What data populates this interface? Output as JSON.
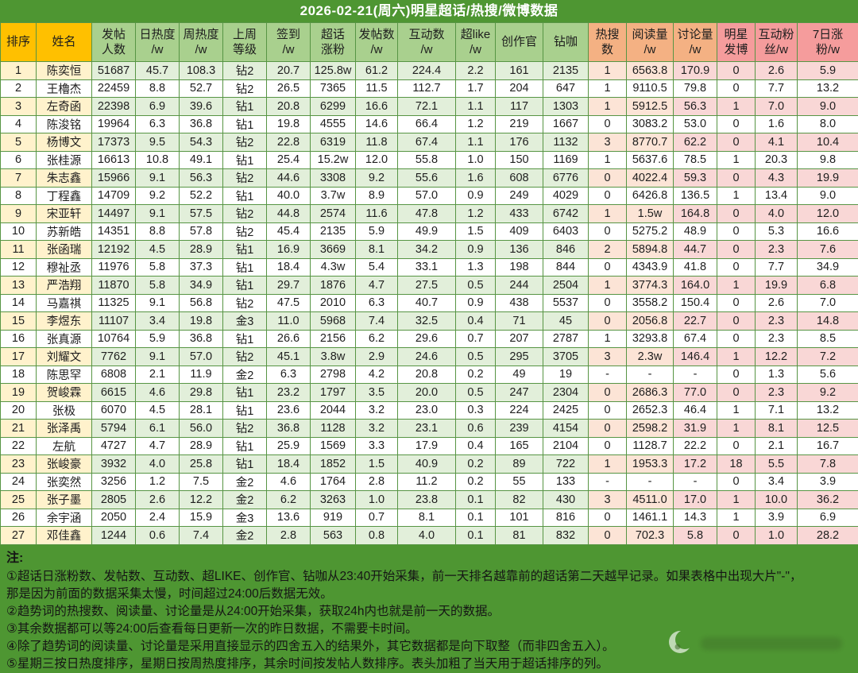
{
  "title": "2026-02-21(周六)明星超话/热搜/微博数据",
  "chart_data": {
    "type": "table",
    "columns": [
      "排序",
      "姓名",
      "发帖\n人数",
      "日热度\n/w",
      "周热度\n/w",
      "上周\n等级",
      "签到\n/w",
      "超话\n涨粉",
      "发帖数\n/w",
      "互动数\n/w",
      "超like\n/w",
      "创作官",
      "钻咖",
      "热搜\n数",
      "阅读量\n/w",
      "讨论量\n/w",
      "明星\n发博",
      "互动粉\n丝/w",
      "7日涨\n粉/w"
    ],
    "sort_column": "发帖人数",
    "rows": [
      [
        "1",
        "陈奕恒",
        "51687|r",
        "45.7|r",
        "108.3",
        "钻2",
        "20.7|r",
        "125.8w|r",
        "61.2",
        "224.4",
        "2.2",
        "161",
        "2135",
        "1",
        "6563.8",
        "170.9|r",
        "0",
        "2.6",
        "5.9|r"
      ],
      [
        "2",
        "王櫓杰",
        "22459",
        "8.8",
        "52.7",
        "钻2",
        "26.5",
        "7365|r",
        "11.5",
        "112.7",
        "1.7",
        "204",
        "647",
        "1",
        "9110.5",
        "79.8|b",
        "0",
        "7.7",
        "13.2|r"
      ],
      [
        "3",
        "左奇函",
        "22398",
        "6.9",
        "39.6",
        "钻1",
        "20.8",
        "6299|r",
        "16.6",
        "72.1",
        "1.1",
        "117",
        "1303",
        "1",
        "5912.5",
        "56.3",
        "1",
        "7.0",
        "9.0|r"
      ],
      [
        "4",
        "陈浚铭",
        "19964",
        "6.3",
        "36.8",
        "钻1",
        "19.8",
        "4555|r",
        "14.6",
        "66.4",
        "1.2",
        "219",
        "1667",
        "0",
        "3083.2",
        "53.0|b",
        "0",
        "1.6",
        "8.0|r"
      ],
      [
        "5",
        "杨博文",
        "17373",
        "9.5",
        "54.3",
        "钻2",
        "22.8",
        "6319|r",
        "11.8",
        "67.4",
        "1.1",
        "176",
        "1132",
        "3",
        "8770.7",
        "62.2|r",
        "0",
        "4.1",
        "10.4|r"
      ],
      [
        "6",
        "张桂源",
        "16613",
        "10.8",
        "49.1",
        "钻1",
        "25.4|r",
        "15.2w|r",
        "12.0",
        "55.8",
        "1.0",
        "150",
        "1169",
        "1",
        "5637.6",
        "78.5",
        "1",
        "20.3",
        "9.8|r"
      ],
      [
        "7",
        "朱志鑫",
        "15966",
        "9.1",
        "56.3",
        "钻2",
        "44.6",
        "3308",
        "9.2",
        "55.6",
        "1.6",
        "608",
        "6776",
        "0",
        "4022.4|b",
        "59.3",
        "0",
        "4.3",
        "19.9|r"
      ],
      [
        "8",
        "丁程鑫",
        "14709",
        "9.2",
        "52.2",
        "钻1",
        "40.0|r",
        "3.7w|r",
        "8.9",
        "57.0",
        "0.9",
        "249",
        "4029",
        "0",
        "6426.8",
        "136.5",
        "1",
        "13.4",
        "9.0|r"
      ],
      [
        "9",
        "宋亚轩",
        "14497",
        "9.1",
        "57.5",
        "钻2",
        "44.8",
        "2574",
        "11.6",
        "47.8",
        "1.2",
        "433",
        "6742",
        "1",
        "1.5w|r",
        "164.8",
        "0",
        "4.0",
        "12.0|r"
      ],
      [
        "10",
        "苏新皓",
        "14351",
        "8.8",
        "57.8",
        "钻2",
        "45.4",
        "2135",
        "5.9",
        "49.9",
        "1.5",
        "409",
        "6403",
        "0",
        "5275.2",
        "48.9|b",
        "0",
        "5.3",
        "16.6|r"
      ],
      [
        "11",
        "张函瑞",
        "12192",
        "4.5",
        "28.9",
        "钻1",
        "16.9",
        "3669",
        "8.1",
        "34.2",
        "0.9",
        "136",
        "846",
        "2",
        "5894.8",
        "44.7",
        "0",
        "2.3",
        "7.6|r"
      ],
      [
        "12",
        "穆祉丞",
        "11976",
        "5.8",
        "37.3",
        "钻1",
        "18.4",
        "4.3w|r",
        "5.4",
        "33.1",
        "1.3",
        "198",
        "844",
        "0",
        "4343.9|b",
        "41.8",
        "0",
        "7.7",
        "34.9"
      ],
      [
        "13",
        "严浩翔",
        "11870|r",
        "5.8",
        "34.9",
        "钻1",
        "29.7",
        "1876",
        "4.7",
        "27.5",
        "0.5",
        "244",
        "2504",
        "1",
        "3774.3",
        "164.0|r",
        "1",
        "19.9",
        "6.8|r"
      ],
      [
        "14",
        "马嘉祺",
        "11325",
        "9.1",
        "56.8",
        "钻2",
        "47.5",
        "2010",
        "6.3",
        "40.7",
        "0.9",
        "438",
        "5537",
        "0",
        "3558.2",
        "150.4",
        "0",
        "2.6",
        "7.0|r"
      ],
      [
        "15",
        "李煜东",
        "11107|r",
        "3.4",
        "19.8",
        "金3",
        "11.0",
        "5968|r",
        "7.4",
        "32.5",
        "0.4",
        "71",
        "45",
        "0",
        "2056.8",
        "22.7",
        "0",
        "2.3",
        "14.8|r"
      ],
      [
        "16",
        "张真源",
        "10764",
        "5.9",
        "36.8",
        "钻1",
        "26.6",
        "2156",
        "6.2",
        "29.6",
        "0.7",
        "207",
        "2787",
        "1",
        "3293.8",
        "67.4",
        "0",
        "2.3",
        "8.5|r"
      ],
      [
        "17",
        "刘耀文",
        "7762",
        "9.1",
        "57.0",
        "钻2",
        "45.1",
        "3.8w|r",
        "2.9",
        "24.6",
        "0.5",
        "295",
        "3705",
        "3",
        "2.3w|r",
        "146.4",
        "1",
        "12.2",
        "7.2|r"
      ],
      [
        "18",
        "陈思罕",
        "6808",
        "2.1",
        "11.9",
        "金2",
        "6.3",
        "2798",
        "4.2",
        "20.8",
        "0.2",
        "49",
        "19",
        "-",
        "-",
        "-",
        "0",
        "1.3",
        "5.6|r"
      ],
      [
        "19",
        "贺峻霖",
        "6615",
        "4.6",
        "29.8",
        "钻1",
        "23.2",
        "1797",
        "3.5",
        "20.0",
        "0.5",
        "247",
        "2304",
        "0",
        "2686.3",
        "77.0",
        "0",
        "2.3",
        "9.2|r"
      ],
      [
        "20",
        "张极",
        "6070|b",
        "4.5|b",
        "28.1",
        "钻1",
        "23.6",
        "2044",
        "3.2",
        "23.0",
        "0.3",
        "224",
        "2425",
        "0",
        "2652.3|b",
        "46.4|b",
        "1",
        "7.1",
        "13.2|r"
      ],
      [
        "21",
        "张泽禹",
        "5794",
        "6.1",
        "56.0",
        "钻2",
        "36.8",
        "1128",
        "3.2",
        "23.1",
        "0.6",
        "239",
        "4154",
        "0",
        "2598.2",
        "31.9",
        "1",
        "8.1",
        "12.5|r"
      ],
      [
        "22",
        "左航",
        "4727",
        "4.7",
        "28.9",
        "钻1",
        "25.9",
        "1569",
        "3.3",
        "17.9",
        "0.4",
        "165",
        "2104",
        "0",
        "1128.7|b",
        "22.2",
        "0",
        "2.1",
        "16.7|r"
      ],
      [
        "23",
        "张峻豪",
        "3932",
        "4.0",
        "25.8",
        "钻1",
        "18.4",
        "1852",
        "1.5",
        "40.9",
        "0.2",
        "89",
        "722",
        "1",
        "1953.3|b",
        "17.2",
        "18",
        "5.5",
        "7.8|r"
      ],
      [
        "24",
        "张奕然",
        "3256",
        "1.2",
        "7.5",
        "金2",
        "4.6",
        "1764",
        "2.8",
        "11.2",
        "0.2",
        "55",
        "133",
        "-",
        "-",
        "-",
        "0",
        "3.4",
        "3.9"
      ],
      [
        "25",
        "张子墨",
        "2805|b",
        "2.6|b",
        "12.2",
        "金2",
        "6.2|b",
        "3263",
        "1.0",
        "23.8",
        "0.1",
        "82",
        "430",
        "3",
        "4511.0",
        "17.0|b",
        "1",
        "10.0",
        "36.2|r"
      ],
      [
        "26",
        "余宇涵",
        "2050",
        "2.4",
        "15.9",
        "金3",
        "13.6",
        "919",
        "0.7",
        "8.1",
        "0.1",
        "101",
        "816",
        "0",
        "1461.1",
        "14.3",
        "1",
        "3.9",
        "6.9|r"
      ],
      [
        "27",
        "邓佳鑫",
        "1244",
        "0.6",
        "7.4",
        "金2",
        "2.8",
        "563",
        "0.8",
        "4.0",
        "0.1",
        "81",
        "832",
        "0",
        "702.3",
        "5.8",
        "0",
        "1.0",
        "28.2|r"
      ]
    ]
  },
  "notes": {
    "heading": "注:",
    "lines": [
      "①超话日涨粉数、发帖数、互动数、超LIKE、创作官、钻咖从23:40开始采集，前一天排名越靠前的超话第二天越早记录。如果表格中出现大片\"-\"，",
      "那是因为前面的数据采集太慢，时间超过24:00后数据无效。",
      "②趋势词的热搜数、阅读量、讨论量是从24:00开始采集，获取24h内也就是前一天的数据。",
      "③其余数据都可以等24:00后查看每日更新一次的昨日数据，不需要卡时间。",
      "④除了趋势词的阅读量、讨论量是采用直接显示的四舍五入的结果外，其它数据都是向下取整（而非四舍五入）。",
      "⑤星期三按日热度排序，星期日按周热度排序，其余时间按发帖人数排序。表头加粗了当天用于超话排序的列。"
    ]
  },
  "colors": {
    "background_green": "#4e9632",
    "header_yellow": "#ffc000",
    "header_green": "#a9d08e",
    "header_orange": "#f4b183",
    "header_pink": "#f59c9c",
    "row_tint_yellow": "#fff2cc",
    "row_tint_green": "#e2efda",
    "row_tint_orange": "#fce4d6",
    "row_tint_pink": "#f9d7d6",
    "value_red": "#b3493e",
    "value_blue": "#48789e",
    "title_text": "#ffffff"
  }
}
